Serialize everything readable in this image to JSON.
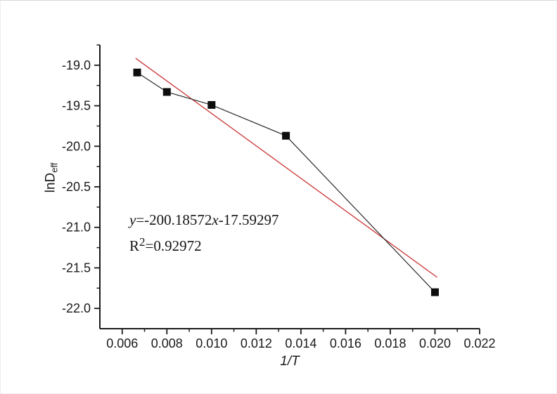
{
  "figure": {
    "background": "#ffffff",
    "axis_color": "#1a1a1a",
    "marker_color": "#0d0d0d",
    "data_line_color": "#2b2b2b",
    "fit_line_color": "#cc3333"
  },
  "chart_data": {
    "type": "scatter",
    "title": "",
    "xlabel": "1/T",
    "ylabel": "lnD_eff",
    "ylabel_base": "lnD",
    "ylabel_sub": "eff",
    "xlim": [
      0.005,
      0.022
    ],
    "ylim": [
      -22.25,
      -18.75
    ],
    "x_ticks": [
      0.006,
      0.008,
      0.01,
      0.012,
      0.014,
      0.016,
      0.018,
      0.02,
      0.022
    ],
    "x_tick_labels": [
      "0.006",
      "0.008",
      "0.010",
      "0.012",
      "0.014",
      "0.016",
      "0.018",
      "0.020",
      "0.022"
    ],
    "x_minor_step": 0.001,
    "y_ticks": [
      -19.0,
      -19.5,
      -20.0,
      -20.5,
      -21.0,
      -21.5,
      -22.0
    ],
    "y_tick_labels": [
      "-19.0",
      "-19.5",
      "-20.0",
      "-20.5",
      "-21.0",
      "-21.5",
      "-22.0"
    ],
    "y_minor_step": 0.25,
    "grid": false,
    "legend": null,
    "series": [
      {
        "name": "lnDeff vs 1/T data",
        "marker": "square",
        "points": [
          [
            0.00667,
            -19.09
          ],
          [
            0.008,
            -19.33
          ],
          [
            0.01,
            -19.49
          ],
          [
            0.01333,
            -19.87
          ],
          [
            0.02,
            -21.8
          ]
        ]
      }
    ],
    "fit_line": {
      "slope": -200.18572,
      "intercept": -17.59297,
      "x_start": 0.0066,
      "x_end": 0.0201
    },
    "annotation": {
      "eq_y": "y",
      "eq_mid": "=-200.18572",
      "eq_x": "x",
      "eq_end": "-17.59297",
      "r_base": "R",
      "r_sup": "2",
      "r_value": "=0.92972"
    }
  }
}
